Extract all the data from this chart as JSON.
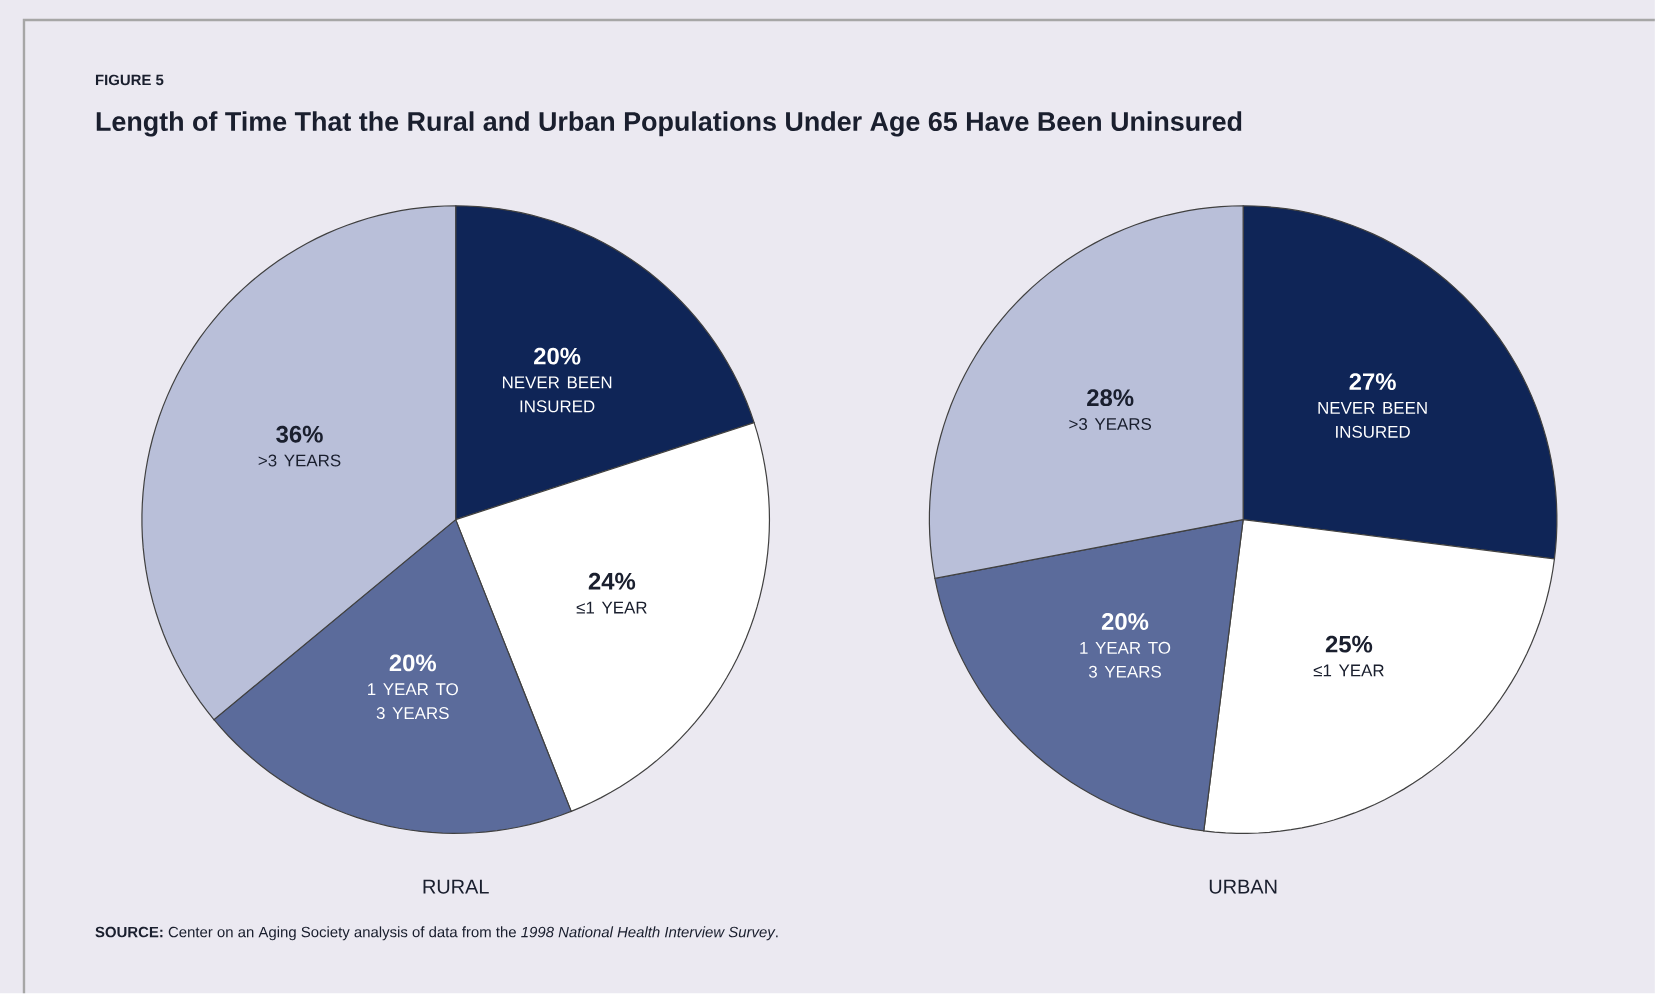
{
  "chart_data": [
    {
      "type": "pie",
      "title": "Length of Time That the Rural and Urban Populations Under Age 65 Have Been Uninsured",
      "xlabel": "RURAL",
      "annotations": [
        "FIGURE 5",
        "**SOURCE:** Center on an Aging Society analysis of data from the *1998 National Health Interview Survey*."
      ],
      "categories": [
        "NEVER BEEN INSURED",
        "≤1 YEAR",
        "1 YEAR TO 3 YEARS",
        ">3 YEARS"
      ],
      "values": [
        20,
        24,
        20,
        36
      ],
      "value_labels": [
        "20%",
        "24%",
        "20%",
        "36%"
      ],
      "colors": [
        "#0f2557",
        "#ffffff",
        "#5b6b9b",
        "#b9bfd9"
      ]
    },
    {
      "type": "pie",
      "xlabel": "URBAN",
      "categories": [
        "NEVER BEEN INSURED",
        "≤1 YEAR",
        "1 YEAR TO 3 YEARS",
        ">3 YEARS"
      ],
      "values": [
        27,
        25,
        20,
        28
      ],
      "value_labels": [
        "27%",
        "25%",
        "20%",
        "28%"
      ],
      "colors": [
        "#0f2557",
        "#ffffff",
        "#5b6b9b",
        "#b9bfd9"
      ]
    }
  ]
}
